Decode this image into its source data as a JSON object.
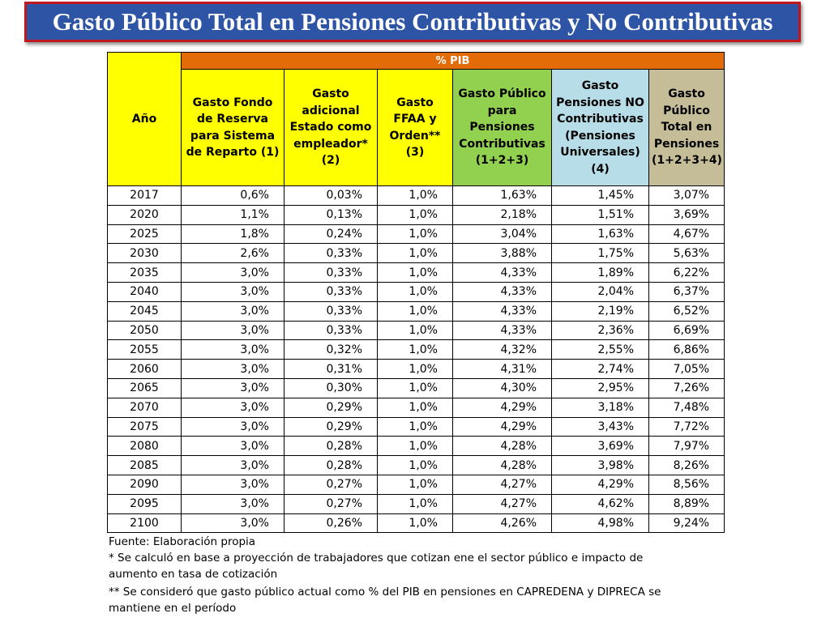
{
  "title": "Gasto Público Total en Pensiones Contributivas y No Contributivas",
  "table": {
    "year_header": "Año",
    "group_header": "% PIB",
    "columns": [
      [
        "Gasto Fondo",
        "de Reserva",
        "para Sistema",
        "de Reparto (1)"
      ],
      [
        "Gasto",
        "adicional",
        "Estado como",
        "empleador*",
        "(2)"
      ],
      [
        "Gasto",
        "FFAA y",
        "Orden**",
        "(3)"
      ],
      [
        "Gasto Público",
        "para Pensiones",
        "Contributivas",
        "(1+2+3)"
      ],
      [
        "Gasto",
        "Pensiones NO",
        "Contributivas",
        "(Pensiones",
        "Universales)",
        "(4)"
      ],
      [
        "Gasto",
        "Público",
        "Total en",
        "Pensiones",
        "(1+2+3+4)"
      ]
    ],
    "header_colors": [
      "#ffff00",
      "#ffff00",
      "#ffff00",
      "#92d050",
      "#b7dee8",
      "#c4bd97"
    ],
    "rows": [
      [
        "2017",
        "0,6%",
        "0,03%",
        "1,0%",
        "1,63%",
        "1,45%",
        "3,07%"
      ],
      [
        "2020",
        "1,1%",
        "0,13%",
        "1,0%",
        "2,18%",
        "1,51%",
        "3,69%"
      ],
      [
        "2025",
        "1,8%",
        "0,24%",
        "1,0%",
        "3,04%",
        "1,63%",
        "4,67%"
      ],
      [
        "2030",
        "2,6%",
        "0,33%",
        "1,0%",
        "3,88%",
        "1,75%",
        "5,63%"
      ],
      [
        "2035",
        "3,0%",
        "0,33%",
        "1,0%",
        "4,33%",
        "1,89%",
        "6,22%"
      ],
      [
        "2040",
        "3,0%",
        "0,33%",
        "1,0%",
        "4,33%",
        "2,04%",
        "6,37%"
      ],
      [
        "2045",
        "3,0%",
        "0,33%",
        "1,0%",
        "4,33%",
        "2,19%",
        "6,52%"
      ],
      [
        "2050",
        "3,0%",
        "0,33%",
        "1,0%",
        "4,33%",
        "2,36%",
        "6,69%"
      ],
      [
        "2055",
        "3,0%",
        "0,32%",
        "1,0%",
        "4,32%",
        "2,55%",
        "6,86%"
      ],
      [
        "2060",
        "3,0%",
        "0,31%",
        "1,0%",
        "4,31%",
        "2,74%",
        "7,05%"
      ],
      [
        "2065",
        "3,0%",
        "0,30%",
        "1,0%",
        "4,30%",
        "2,95%",
        "7,26%"
      ],
      [
        "2070",
        "3,0%",
        "0,29%",
        "1,0%",
        "4,29%",
        "3,18%",
        "7,48%"
      ],
      [
        "2075",
        "3,0%",
        "0,29%",
        "1,0%",
        "4,29%",
        "3,43%",
        "7,72%"
      ],
      [
        "2080",
        "3,0%",
        "0,28%",
        "1,0%",
        "4,28%",
        "3,69%",
        "7,97%"
      ],
      [
        "2085",
        "3,0%",
        "0,28%",
        "1,0%",
        "4,28%",
        "3,98%",
        "8,26%"
      ],
      [
        "2090",
        "3,0%",
        "0,27%",
        "1,0%",
        "4,27%",
        "4,29%",
        "8,56%"
      ],
      [
        "2095",
        "3,0%",
        "0,27%",
        "1,0%",
        "4,27%",
        "4,62%",
        "8,89%"
      ],
      [
        "2100",
        "3,0%",
        "0,26%",
        "1,0%",
        "4,26%",
        "4,98%",
        "9,24%"
      ]
    ]
  },
  "notes": {
    "source": "Fuente: Elaboración propia",
    "note1": "* Se calculó en base a proyección de trabajadores que cotizan ene el sector público e impacto de aumento en tasa de cotización",
    "note2": "** Se consideró que gasto público actual como % del PIB en pensiones en CAPREDENA y DIPRECA se mantiene en el período"
  },
  "colors": {
    "title_background": "#2e54a6",
    "title_border": "#c0181c",
    "pib_header": "#e36c09"
  }
}
